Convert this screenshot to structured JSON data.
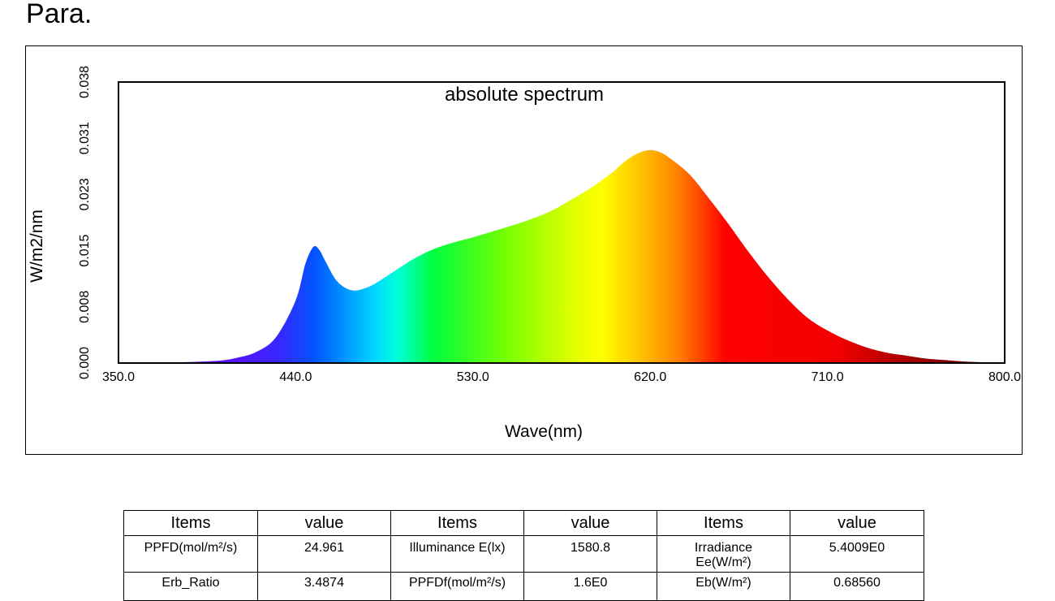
{
  "page": {
    "heading": "Para."
  },
  "chart_data": {
    "type": "area",
    "title": "absolute spectrum",
    "xlabel": "Wave(nm)",
    "ylabel": "W/m2/nm",
    "xlim": [
      350,
      800
    ],
    "ylim": [
      0,
      0.038
    ],
    "x_ticks": [
      "350.0",
      "440.0",
      "530.0",
      "620.0",
      "710.0",
      "800.0"
    ],
    "y_ticks": [
      "0.000",
      "0.008",
      "0.015",
      "0.023",
      "0.031",
      "0.038"
    ],
    "fill": "visible-spectrum gradient",
    "x": [
      350,
      380,
      400,
      410,
      420,
      430,
      440,
      445,
      449,
      452,
      455,
      460,
      465,
      470,
      475,
      480,
      490,
      500,
      510,
      520,
      530,
      540,
      550,
      560,
      570,
      580,
      590,
      600,
      605,
      610,
      615,
      620,
      625,
      630,
      640,
      650,
      660,
      670,
      680,
      690,
      700,
      710,
      720,
      730,
      740,
      750,
      760,
      770,
      780,
      790,
      800
    ],
    "y": [
      0.0,
      0.0001,
      0.0003,
      0.0007,
      0.0015,
      0.0035,
      0.0085,
      0.0135,
      0.0157,
      0.0153,
      0.0138,
      0.0114,
      0.0102,
      0.0098,
      0.0101,
      0.0107,
      0.0124,
      0.0141,
      0.0154,
      0.0163,
      0.017,
      0.0178,
      0.0186,
      0.0195,
      0.0206,
      0.0221,
      0.0237,
      0.0256,
      0.0268,
      0.0278,
      0.0285,
      0.0288,
      0.0285,
      0.0277,
      0.0255,
      0.0222,
      0.0187,
      0.015,
      0.0116,
      0.0086,
      0.0061,
      0.0044,
      0.0031,
      0.0021,
      0.0014,
      0.001,
      0.0006,
      0.0004,
      0.0002,
      0.0001,
      0.0
    ]
  },
  "table": {
    "headers": [
      "Items",
      "value",
      "Items",
      "value",
      "Items",
      "value"
    ],
    "rows": [
      [
        "PPFD(mol/m²/s)",
        "24.961",
        "Illuminance E(lx)",
        "1580.8",
        "Irradiance\nEe(W/m²)",
        "5.4009E0"
      ],
      [
        "Erb_Ratio",
        "3.4874",
        "PPFDf(mol/m²/s)",
        "1.6E0",
        "Eb(W/m²)",
        "0.68560"
      ]
    ]
  }
}
